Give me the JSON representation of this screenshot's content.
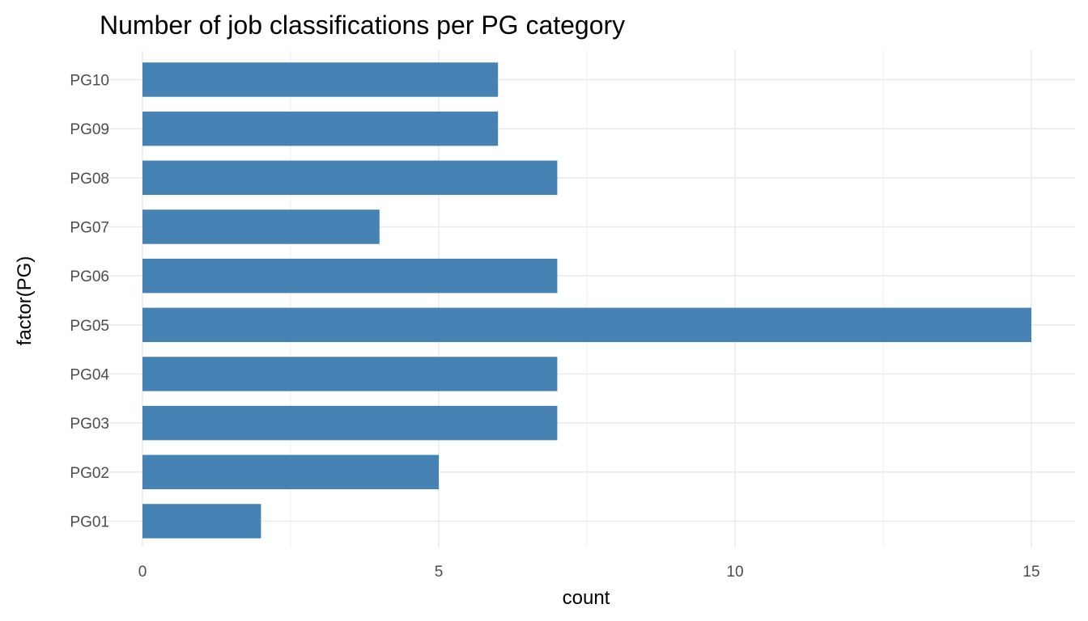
{
  "chart_data": {
    "type": "bar",
    "orientation": "horizontal",
    "title": "Number of job classifications per PG category",
    "xlabel": "count",
    "ylabel": "factor(PG)",
    "categories": [
      "PG01",
      "PG02",
      "PG03",
      "PG04",
      "PG05",
      "PG06",
      "PG07",
      "PG08",
      "PG09",
      "PG10"
    ],
    "values": [
      2,
      5,
      7,
      7,
      15,
      7,
      4,
      7,
      6,
      6
    ],
    "x_ticks": [
      0,
      5,
      10,
      15
    ],
    "x_tick_labels": [
      "0",
      "5",
      "10",
      "15"
    ],
    "xlim": [
      0,
      15
    ],
    "grid": true,
    "legend": "none",
    "bar_color": "#4682B4",
    "grid_color": "#EBEBEB",
    "background": "#FFFFFF"
  }
}
